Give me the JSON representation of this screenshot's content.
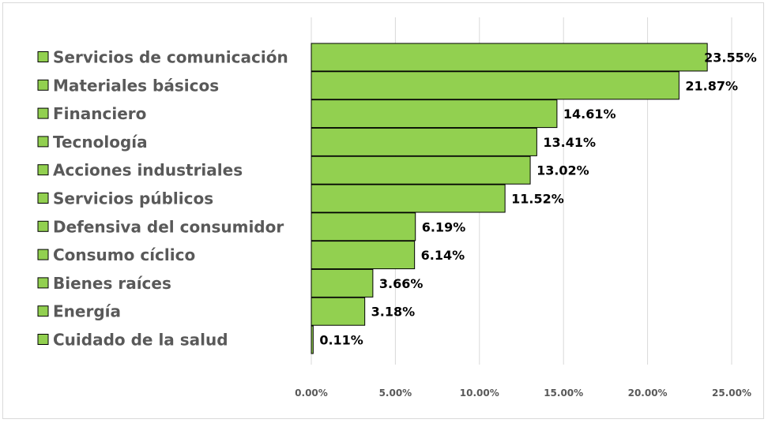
{
  "chart_data": {
    "type": "bar",
    "orientation": "horizontal",
    "categories": [
      "Servicios de comunicación",
      "Materiales básicos",
      "Financiero",
      "Tecnología",
      "Acciones industriales",
      "Servicios públicos",
      "Defensiva del consumidor",
      "Consumo cíclico",
      "Bienes raíces",
      "Energía",
      "Cuidado de la salud"
    ],
    "values": [
      23.55,
      21.87,
      14.61,
      13.41,
      13.02,
      11.52,
      6.19,
      6.14,
      3.66,
      3.18,
      0.11
    ],
    "value_labels": [
      "23.55%",
      "21.87%",
      "14.61%",
      "13.41%",
      "13.02%",
      "11.52%",
      "6.19%",
      "6.14%",
      "3.66%",
      "3.18%",
      "0.11%"
    ],
    "x_ticks": [
      0,
      5,
      10,
      15,
      20,
      25
    ],
    "x_tick_labels": [
      "0.00%",
      "5.00%",
      "10.00%",
      "15.00%",
      "20.00%",
      "25.00%"
    ],
    "xlim": [
      0,
      25
    ],
    "title": "",
    "xlabel": "",
    "ylabel": "",
    "grid": "vertical",
    "legend": "left",
    "colors": {
      "bar_fill": "#92d050",
      "bar_stroke": "#000000",
      "grid": "#d9d9d9",
      "category_text": "#595959",
      "value_text": "#000000",
      "tick_text": "#595959"
    }
  }
}
